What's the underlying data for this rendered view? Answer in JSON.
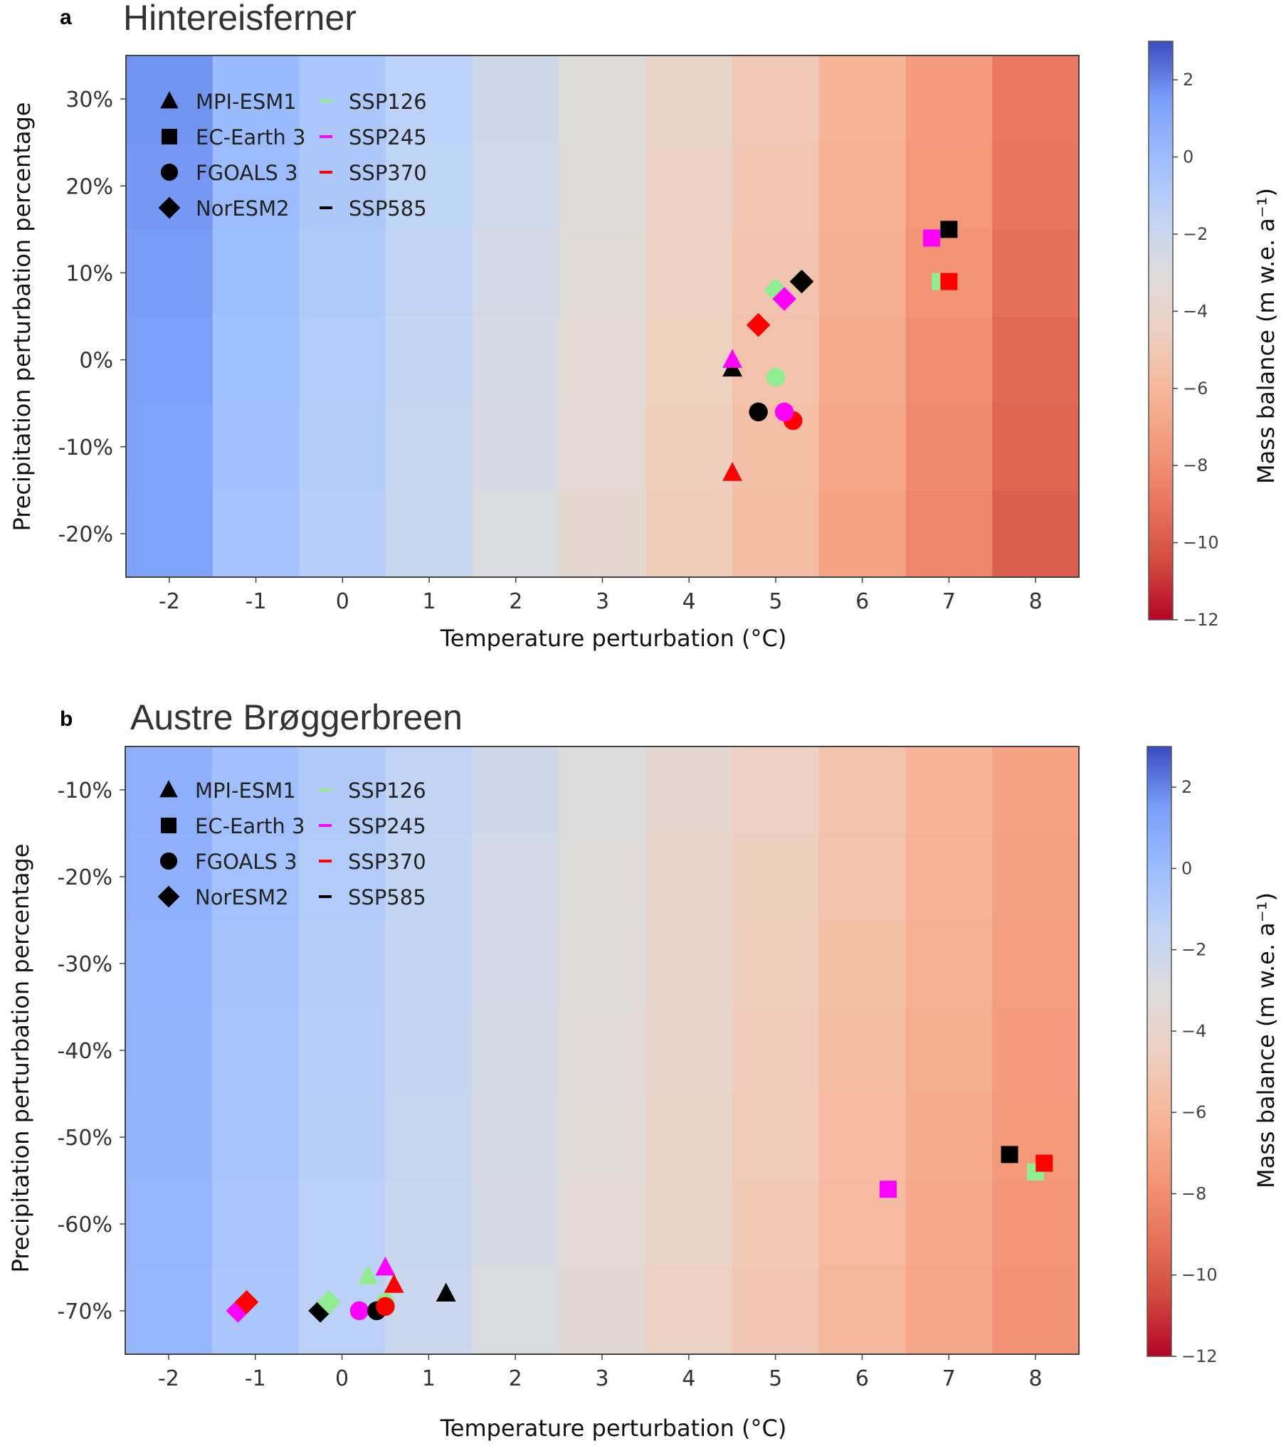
{
  "colormap": {
    "name": "coolwarm",
    "stops": [
      "#b40426",
      "#d24b40",
      "#e8765c",
      "#f49a7b",
      "#f6b89c",
      "#edd1c2",
      "#dddcdc",
      "#c0d4f5",
      "#9dbdff",
      "#7b9ff9",
      "#3b4cc0"
    ],
    "vmin": -12,
    "vmax": 3
  },
  "legend": {
    "models": [
      {
        "label": "MPI-ESM1",
        "marker": "triangle"
      },
      {
        "label": "EC-Earth 3",
        "marker": "square"
      },
      {
        "label": "FGOALS 3",
        "marker": "circle"
      },
      {
        "label": "NorESM2",
        "marker": "diamond"
      }
    ],
    "scenarios": [
      {
        "label": "SSP126",
        "color": "#90ee90"
      },
      {
        "label": "SSP245",
        "color": "#ff00ff"
      },
      {
        "label": "SSP370",
        "color": "#ff0000"
      },
      {
        "label": "SSP585",
        "color": "#000000"
      }
    ]
  },
  "chart_data": [
    {
      "type": "heatmap",
      "panel_letter": "a",
      "title": "Hintereisferner",
      "xlabel": "Temperature perturbation (°C)",
      "ylabel": "Precipitation perturbation percentage",
      "xlim": [
        -2.5,
        8.5
      ],
      "ylim": [
        -25,
        35
      ],
      "xticks": [
        -2,
        -1,
        0,
        1,
        2,
        3,
        4,
        5,
        6,
        7,
        8
      ],
      "xtick_labels": [
        "-2",
        "-1",
        "0",
        "1",
        "2",
        "3",
        "4",
        "5",
        "6",
        "7",
        "8"
      ],
      "yticks": [
        -20,
        -10,
        0,
        10,
        20,
        30
      ],
      "ytick_labels": [
        "-20%",
        "-10%",
        "0%",
        "10%",
        "20%",
        "30%"
      ],
      "grid_x": [
        -2,
        -1,
        0,
        1,
        2,
        3,
        4,
        5,
        6,
        7,
        8
      ],
      "grid_y": [
        -20,
        -10,
        0,
        10,
        20,
        30
      ],
      "mass_balance_by_temp": [
        1.3,
        -0.3,
        -1.1,
        -1.9,
        -2.8,
        -3.7,
        -4.8,
        -5.7,
        -7.0,
        -8.3,
        -9.8
      ],
      "precip_gradient_per_10pct": 0.08,
      "colorbar": {
        "label": "Mass balance (m w.e. a⁻¹)",
        "ticks": [
          2,
          0,
          -2,
          -4,
          -6,
          -8,
          -10,
          -12
        ],
        "tick_labels": [
          "2",
          "0",
          "−2",
          "−4",
          "−6",
          "−8",
          "−10",
          "−12"
        ],
        "range": [
          -12,
          3
        ]
      },
      "points": [
        {
          "model": "MPI-ESM1",
          "scenario": "SSP585",
          "x": 4.5,
          "y": -1
        },
        {
          "model": "MPI-ESM1",
          "scenario": "SSP245",
          "x": 4.5,
          "y": 0
        },
        {
          "model": "MPI-ESM1",
          "scenario": "SSP370",
          "x": 4.5,
          "y": -13
        },
        {
          "model": "EC-Earth 3",
          "scenario": "SSP245",
          "x": 6.8,
          "y": 14
        },
        {
          "model": "EC-Earth 3",
          "scenario": "SSP585",
          "x": 7.0,
          "y": 15
        },
        {
          "model": "EC-Earth 3",
          "scenario": "SSP126",
          "x": 6.9,
          "y": 9
        },
        {
          "model": "EC-Earth 3",
          "scenario": "SSP370",
          "x": 7.0,
          "y": 9
        },
        {
          "model": "FGOALS 3",
          "scenario": "SSP126",
          "x": 5.0,
          "y": -2
        },
        {
          "model": "FGOALS 3",
          "scenario": "SSP585",
          "x": 4.8,
          "y": -6
        },
        {
          "model": "FGOALS 3",
          "scenario": "SSP370",
          "x": 5.2,
          "y": -7
        },
        {
          "model": "FGOALS 3",
          "scenario": "SSP245",
          "x": 5.1,
          "y": -6
        },
        {
          "model": "NorESM2",
          "scenario": "SSP126",
          "x": 5.0,
          "y": 8
        },
        {
          "model": "NorESM2",
          "scenario": "SSP245",
          "x": 5.1,
          "y": 7
        },
        {
          "model": "NorESM2",
          "scenario": "SSP585",
          "x": 5.3,
          "y": 9
        },
        {
          "model": "NorESM2",
          "scenario": "SSP370",
          "x": 4.8,
          "y": 4
        }
      ]
    },
    {
      "type": "heatmap",
      "panel_letter": "b",
      "title": "Austre Brøggerbreen",
      "xlabel": "Temperature perturbation (°C)",
      "ylabel": "Precipitation perturbation percentage",
      "xlim": [
        -2.5,
        8.5
      ],
      "ylim": [
        -75,
        -5
      ],
      "xticks": [
        -2,
        -1,
        0,
        1,
        2,
        3,
        4,
        5,
        6,
        7,
        8
      ],
      "xtick_labels": [
        "-2",
        "-1",
        "0",
        "1",
        "2",
        "3",
        "4",
        "5",
        "6",
        "7",
        "8"
      ],
      "yticks": [
        -70,
        -60,
        -50,
        -40,
        -30,
        -20,
        -10
      ],
      "ytick_labels": [
        "-70%",
        "-60%",
        "-50%",
        "-40%",
        "-30%",
        "-20%",
        "-10%"
      ],
      "grid_x": [
        -2,
        -1,
        0,
        1,
        2,
        3,
        4,
        5,
        6,
        7,
        8
      ],
      "grid_y": [
        -70,
        -60,
        -50,
        -40,
        -30,
        -20,
        -10
      ],
      "mass_balance_by_temp": [
        0.3,
        -0.6,
        -1.3,
        -2.0,
        -2.8,
        -3.5,
        -4.3,
        -5.1,
        -6.0,
        -6.9,
        -7.8
      ],
      "precip_gradient_per_10pct": 0.06,
      "colorbar": {
        "label": "Mass balance (m w.e. a⁻¹)",
        "ticks": [
          2,
          0,
          -2,
          -4,
          -6,
          -8,
          -10,
          -12
        ],
        "tick_labels": [
          "2",
          "0",
          "−2",
          "−4",
          "−6",
          "−8",
          "−10",
          "−12"
        ],
        "range": [
          -12,
          3
        ]
      },
      "points": [
        {
          "model": "MPI-ESM1",
          "scenario": "SSP126",
          "x": 0.3,
          "y": -66
        },
        {
          "model": "MPI-ESM1",
          "scenario": "SSP245",
          "x": 0.5,
          "y": -65
        },
        {
          "model": "MPI-ESM1",
          "scenario": "SSP370",
          "x": 0.6,
          "y": -67
        },
        {
          "model": "MPI-ESM1",
          "scenario": "SSP585",
          "x": 1.2,
          "y": -68
        },
        {
          "model": "EC-Earth 3",
          "scenario": "SSP245",
          "x": 6.3,
          "y": -56
        },
        {
          "model": "EC-Earth 3",
          "scenario": "SSP585",
          "x": 7.7,
          "y": -52
        },
        {
          "model": "EC-Earth 3",
          "scenario": "SSP126",
          "x": 8.0,
          "y": -54
        },
        {
          "model": "EC-Earth 3",
          "scenario": "SSP370",
          "x": 8.1,
          "y": -53
        },
        {
          "model": "FGOALS 3",
          "scenario": "SSP245",
          "x": 0.2,
          "y": -70
        },
        {
          "model": "FGOALS 3",
          "scenario": "SSP126",
          "x": 0.5,
          "y": -69
        },
        {
          "model": "FGOALS 3",
          "scenario": "SSP585",
          "x": 0.4,
          "y": -70
        },
        {
          "model": "FGOALS 3",
          "scenario": "SSP370",
          "x": 0.5,
          "y": -69.5
        },
        {
          "model": "NorESM2",
          "scenario": "SSP245",
          "x": -1.2,
          "y": -70
        },
        {
          "model": "NorESM2",
          "scenario": "SSP370",
          "x": -1.1,
          "y": -69
        },
        {
          "model": "NorESM2",
          "scenario": "SSP585",
          "x": -0.25,
          "y": -70
        },
        {
          "model": "NorESM2",
          "scenario": "SSP126",
          "x": -0.15,
          "y": -69
        }
      ]
    }
  ]
}
